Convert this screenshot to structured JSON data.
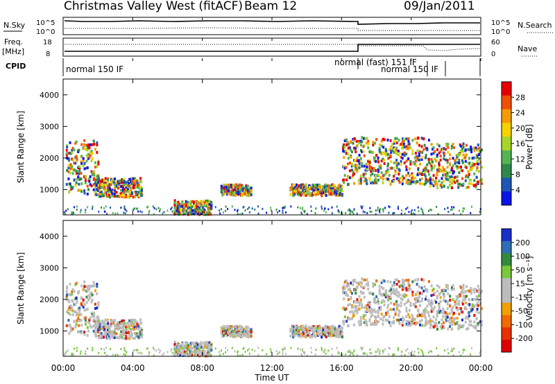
{
  "header": {
    "title": "Christmas Valley West (fitACF)",
    "beam": "Beam 12",
    "date": "09/Jan/2011"
  },
  "status_panel": {
    "nsky_label": "N.Sky",
    "nsky_ticks": [
      "10^5",
      "10^0"
    ],
    "nsearch_label": "N.Search",
    "freq_label": "Freq.",
    "freq_unit": "[MHz]",
    "freq_ticks": [
      "18",
      "8"
    ],
    "nave_label": "Nave",
    "nave_ticks": [
      "60",
      "0"
    ],
    "cpid_label": "CPID",
    "cpid_segments": [
      "normal 150 IF",
      "normal (fast) 151 IF",
      "normal 150 IF"
    ]
  },
  "colors": {
    "power_scale": [
      "#0a14e6",
      "#1e56b4",
      "#2e8a4a",
      "#54b454",
      "#a8d628",
      "#f5d200",
      "#f59a00",
      "#f05000",
      "#e60000"
    ],
    "velocity_scale": [
      "#1a2ec8",
      "#2e6eb4",
      "#348a3c",
      "#7ac83c",
      "#bcbcbc",
      "#bcbcbc",
      "#f0a000",
      "#f06a00",
      "#e83000",
      "#e00000"
    ]
  },
  "chart_data": [
    {
      "type": "heatmap",
      "name": "power",
      "ylabel": "Slant Range [km]",
      "yticks": [
        "1000",
        "2000",
        "3000",
        "4000"
      ],
      "ylim": [
        200,
        4500
      ],
      "xlim": [
        "00:00",
        "24:00"
      ],
      "colorbar_label": "Power [dB]",
      "colorbar_ticks": [
        "4",
        "8",
        "12",
        "16",
        "20",
        "24",
        "28"
      ],
      "color_range": [
        0,
        32
      ]
    },
    {
      "type": "heatmap",
      "name": "velocity",
      "ylabel": "Slant Range [km]",
      "yticks": [
        "1000",
        "2000",
        "3000",
        "4000"
      ],
      "ylim": [
        200,
        4500
      ],
      "xlim": [
        "00:00",
        "24:00"
      ],
      "colorbar_label": "Velocity [m s⁻¹]",
      "colorbar_ticks": [
        "200",
        "100",
        "50",
        "15",
        "-15",
        "-50",
        "-100",
        "-200"
      ],
      "color_range": [
        -250,
        250
      ]
    }
  ],
  "xaxis": {
    "ticks": [
      "00:00",
      "04:00",
      "08:00",
      "12:00",
      "16:00",
      "20:00",
      "00:00"
    ],
    "label": "Time UT"
  }
}
